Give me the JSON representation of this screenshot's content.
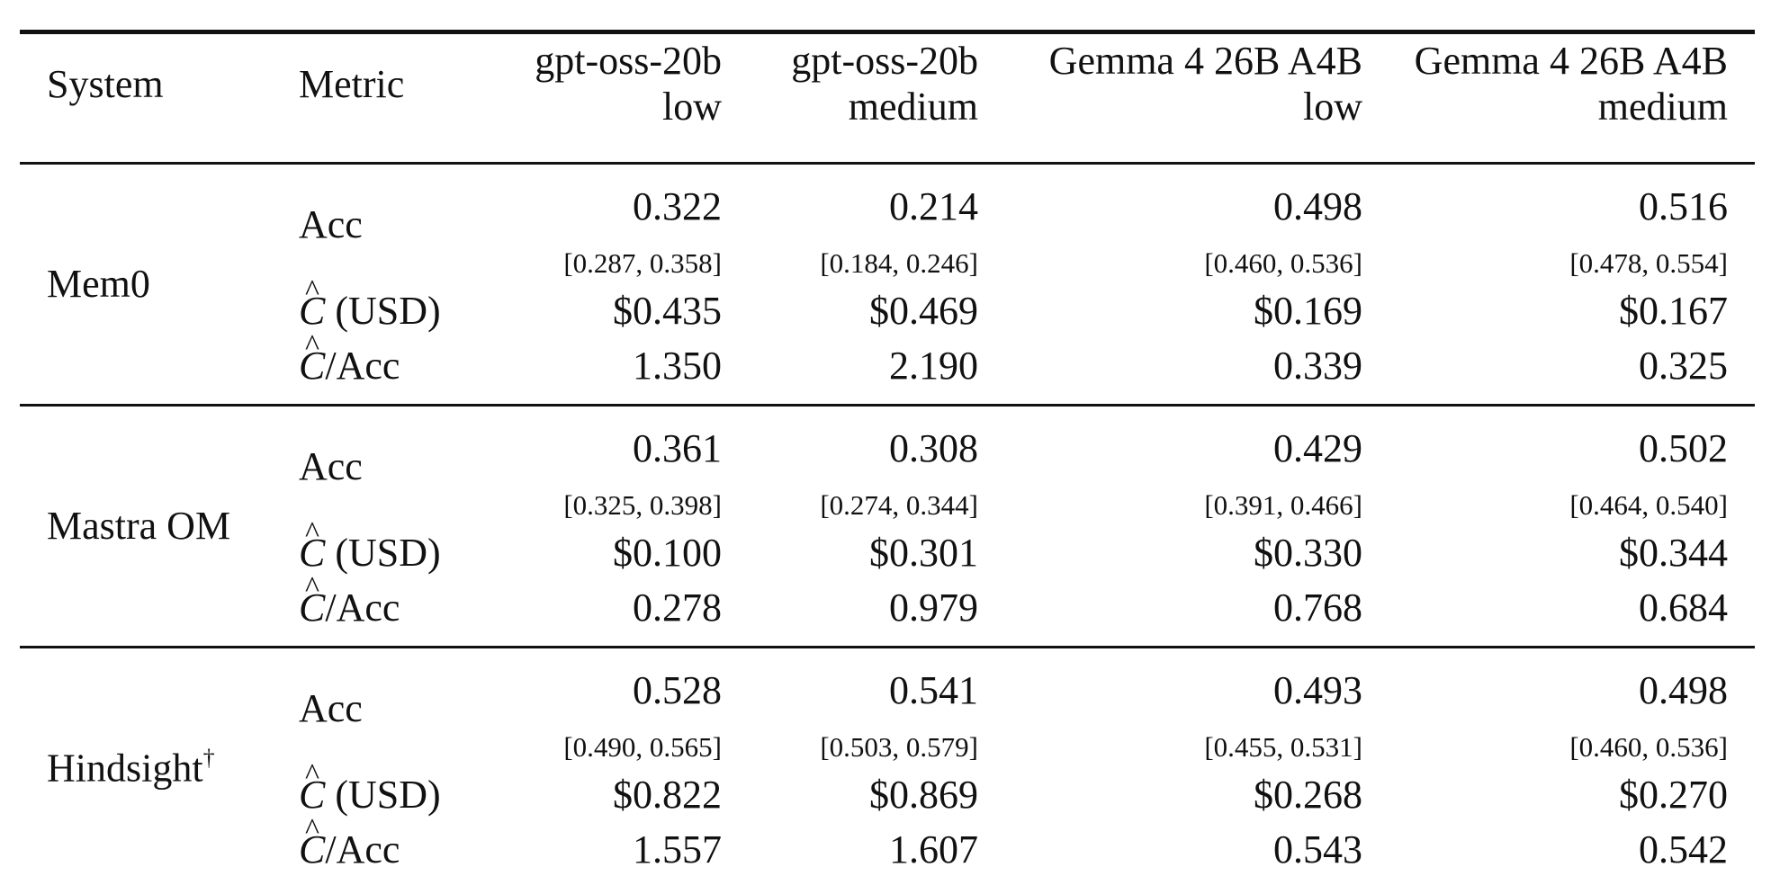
{
  "header": {
    "system": "System",
    "metric": "Metric",
    "columns": [
      {
        "model": "gpt-oss-20b",
        "effort": "low"
      },
      {
        "model": "gpt-oss-20b",
        "effort": "medium"
      },
      {
        "model": "Gemma 4 26B A4B",
        "effort": "low"
      },
      {
        "model": "Gemma 4 26B A4B",
        "effort": "medium"
      }
    ]
  },
  "metrics": {
    "acc": "Acc",
    "cost_symbol": "C",
    "cost_suffix": " (USD)",
    "ratio_suffix": "/Acc"
  },
  "systems": [
    {
      "name": "Mem0",
      "dagger": "",
      "acc": [
        "0.322",
        "0.214",
        "0.498",
        "0.516"
      ],
      "ci": [
        "[0.287, 0.358]",
        "[0.184, 0.246]",
        "[0.460, 0.536]",
        "[0.478, 0.554]"
      ],
      "cost": [
        "$0.435",
        "$0.469",
        "$0.169",
        "$0.167"
      ],
      "ratio": [
        "1.350",
        "2.190",
        "0.339",
        "0.325"
      ]
    },
    {
      "name": "Mastra OM",
      "dagger": "",
      "acc": [
        "0.361",
        "0.308",
        "0.429",
        "0.502"
      ],
      "ci": [
        "[0.325, 0.398]",
        "[0.274, 0.344]",
        "[0.391, 0.466]",
        "[0.464, 0.540]"
      ],
      "cost": [
        "$0.100",
        "$0.301",
        "$0.330",
        "$0.344"
      ],
      "ratio": [
        "0.278",
        "0.979",
        "0.768",
        "0.684"
      ]
    },
    {
      "name": "Hindsight",
      "dagger": "†",
      "acc": [
        "0.528",
        "0.541",
        "0.493",
        "0.498"
      ],
      "ci": [
        "[0.490, 0.565]",
        "[0.503, 0.579]",
        "[0.455, 0.531]",
        "[0.460, 0.536]"
      ],
      "cost": [
        "$0.822",
        "$0.869",
        "$0.268",
        "$0.270"
      ],
      "ratio": [
        "1.557",
        "1.607",
        "0.543",
        "0.542"
      ]
    }
  ]
}
